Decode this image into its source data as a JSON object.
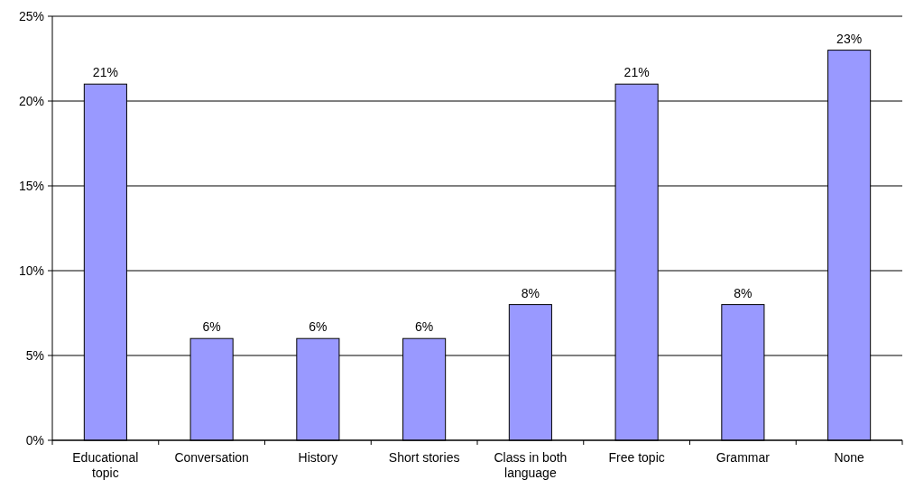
{
  "chart_data": {
    "type": "bar",
    "categories": [
      "Educational topic",
      "Conversation",
      "History",
      "Short stories",
      "Class in both language",
      "Free topic",
      "Grammar",
      "None"
    ],
    "values": [
      21,
      6,
      6,
      6,
      8,
      21,
      8,
      23
    ],
    "value_labels": [
      "21%",
      "6%",
      "6%",
      "6%",
      "8%",
      "21%",
      "8%",
      "23%"
    ],
    "color": "#9999ff",
    "ylim": [
      0,
      25
    ],
    "yticks": [
      {
        "value": 0,
        "label": "0%"
      },
      {
        "value": 5,
        "label": "5%"
      },
      {
        "value": 10,
        "label": "10%"
      },
      {
        "value": 15,
        "label": "15%"
      },
      {
        "value": 20,
        "label": "20%"
      },
      {
        "value": 25,
        "label": "25%"
      }
    ],
    "grid": "y"
  }
}
